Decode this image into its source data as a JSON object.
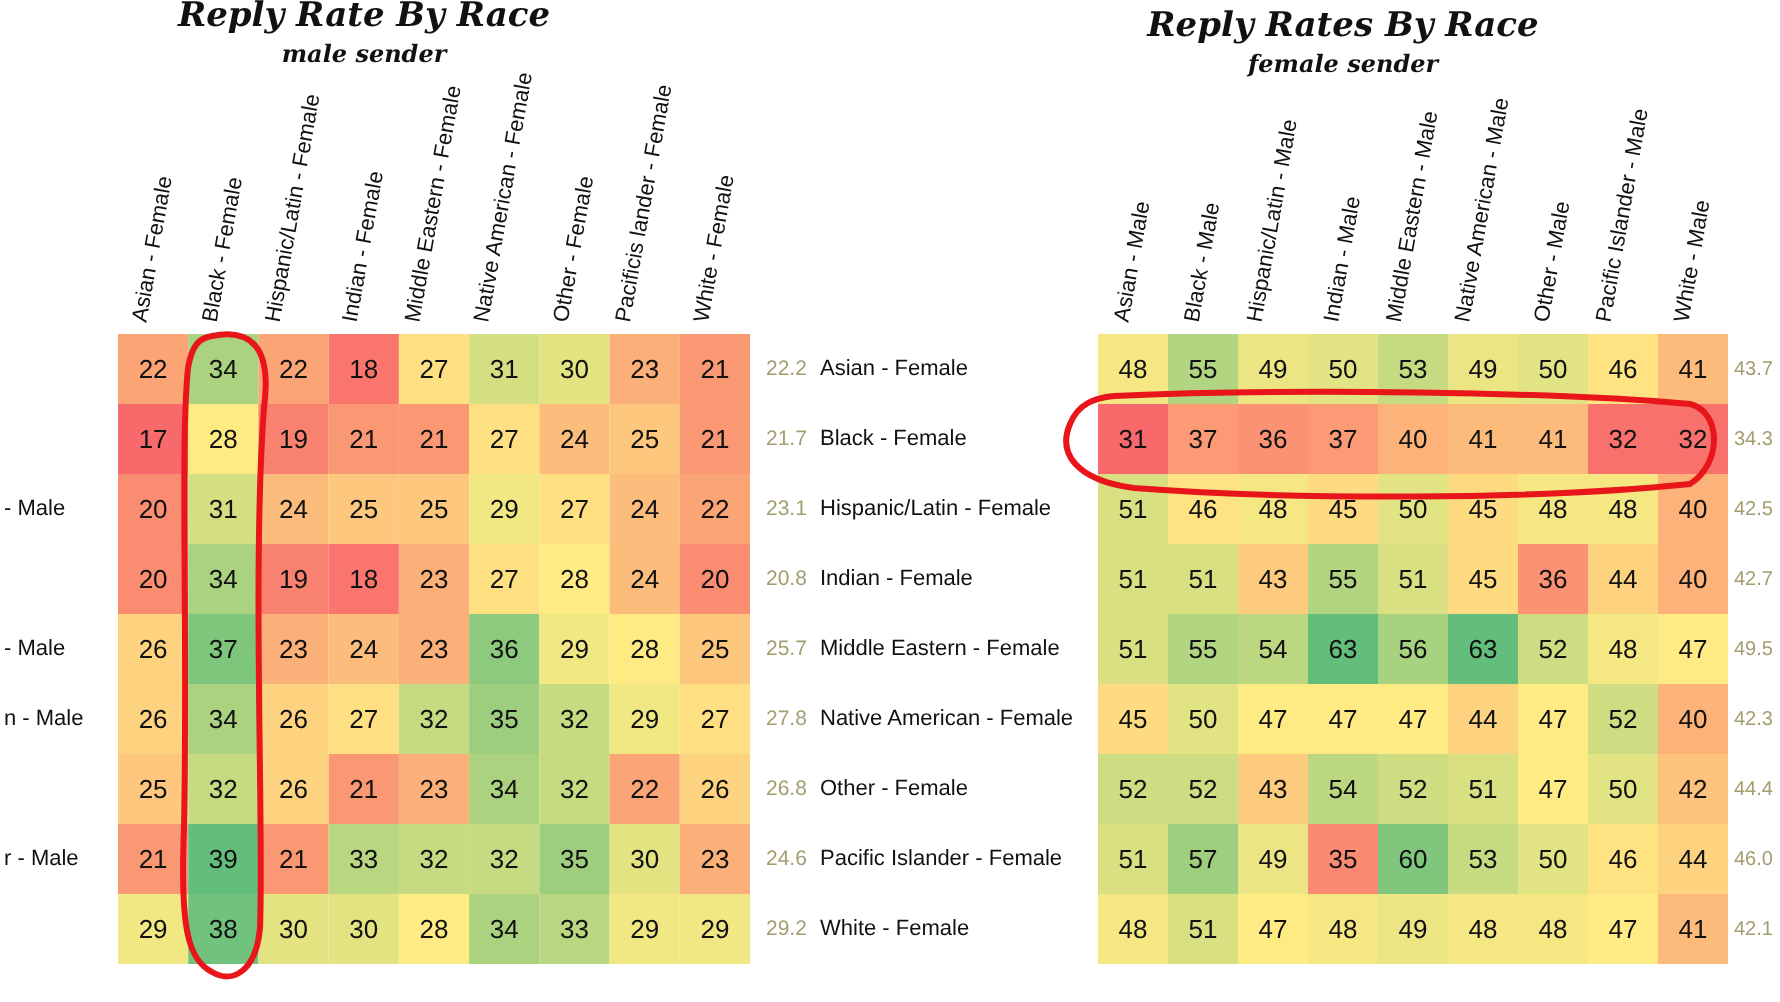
{
  "chart_data": [
    {
      "type": "heatmap",
      "title": "Reply Rate By Race",
      "subtitle": "male sender",
      "data_labels": true,
      "categories": [
        "Asian - Female",
        "Black - Female",
        "Hispanic/Latin - Female",
        "Indian - Female",
        "Middle Eastern - Female",
        "Native American - Female",
        "Other - Female",
        "Pacificis lander - Female",
        "White - Female"
      ],
      "y_categories": [
        null,
        null,
        "- Male",
        null,
        "- Male",
        "n - Male",
        null,
        "r - Male",
        null
      ],
      "y2_categories": [
        "22.2",
        "21.7",
        "23.1",
        "20.8",
        "25.7",
        "27.8",
        "26.8",
        "24.6",
        "29.2"
      ],
      "cells": [
        [
          22,
          34,
          22,
          18,
          27,
          31,
          30,
          23,
          21
        ],
        [
          17,
          28,
          19,
          21,
          21,
          27,
          24,
          25,
          21
        ],
        [
          20,
          31,
          24,
          25,
          25,
          29,
          27,
          24,
          22
        ],
        [
          20,
          34,
          19,
          18,
          23,
          27,
          28,
          24,
          20
        ],
        [
          26,
          37,
          23,
          24,
          23,
          36,
          29,
          28,
          25
        ],
        [
          26,
          34,
          26,
          27,
          32,
          35,
          32,
          29,
          27
        ],
        [
          25,
          32,
          26,
          21,
          23,
          34,
          32,
          22,
          26
        ],
        [
          21,
          39,
          21,
          33,
          32,
          32,
          35,
          30,
          23
        ],
        [
          29,
          38,
          30,
          30,
          28,
          34,
          33,
          29,
          29
        ]
      ]
    },
    {
      "type": "heatmap",
      "title": "Reply Rates By Race",
      "subtitle": "female sender",
      "data_labels": true,
      "categories": [
        "Asian - Male",
        "Black - Male",
        "Hispanic/Latin - Male",
        "Indian - Male",
        "Middle Eastern - Male",
        "Native American - Male",
        "Other - Male",
        "Pacific Islander - Male",
        "White - Male"
      ],
      "y_categories": [
        "Asian - Female",
        "Black - Female",
        "Hispanic/Latin - Female",
        "Indian - Female",
        "Middle Eastern - Female",
        "Native American - Female",
        "Other - Female",
        "Pacific Islander - Female",
        "White - Female"
      ],
      "y2_categories": [
        "43.7",
        "34.3",
        "42.5",
        "42.7",
        "49.5",
        "42.3",
        "44.4",
        "46.0",
        "42.1"
      ],
      "cells": [
        [
          48,
          55,
          49,
          50,
          53,
          49,
          50,
          46,
          41
        ],
        [
          31,
          37,
          36,
          37,
          40,
          41,
          41,
          32,
          32
        ],
        [
          51,
          46,
          48,
          45,
          50,
          45,
          48,
          48,
          40
        ],
        [
          51,
          51,
          43,
          55,
          51,
          45,
          36,
          44,
          40
        ],
        [
          51,
          55,
          54,
          63,
          56,
          63,
          52,
          48,
          47
        ],
        [
          45,
          50,
          47,
          47,
          47,
          44,
          47,
          52,
          40
        ],
        [
          52,
          52,
          43,
          54,
          52,
          51,
          47,
          50,
          42
        ],
        [
          51,
          57,
          49,
          35,
          60,
          53,
          50,
          46,
          44
        ],
        [
          48,
          51,
          47,
          48,
          49,
          48,
          48,
          47,
          41
        ]
      ]
    }
  ]
}
